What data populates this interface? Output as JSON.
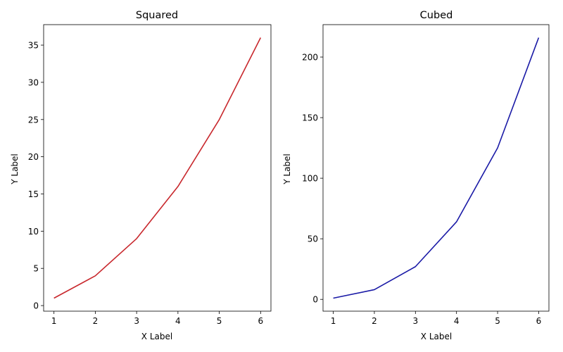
{
  "chart_data": [
    {
      "type": "line",
      "title": "Squared",
      "xlabel": "X Label",
      "ylabel": "Y Label",
      "x": [
        1,
        2,
        3,
        4,
        5,
        6
      ],
      "series": [
        {
          "values": [
            1,
            4,
            9,
            16,
            25,
            36
          ],
          "color": "#c8282d"
        }
      ],
      "xlim": [
        0.75,
        6.25
      ],
      "ylim": [
        -0.75,
        37.75
      ],
      "xticks": [
        1,
        2,
        3,
        4,
        5,
        6
      ],
      "yticks": [
        0,
        5,
        10,
        15,
        20,
        25,
        30,
        35
      ],
      "grid": false
    },
    {
      "type": "line",
      "title": "Cubed",
      "xlabel": "X Label",
      "ylabel": "Y Label",
      "x": [
        1,
        2,
        3,
        4,
        5,
        6
      ],
      "series": [
        {
          "values": [
            1,
            8,
            27,
            64,
            125,
            216
          ],
          "color": "#1a1aa6"
        }
      ],
      "xlim": [
        0.75,
        6.25
      ],
      "ylim": [
        -9.75,
        226.75
      ],
      "xticks": [
        1,
        2,
        3,
        4,
        5,
        6
      ],
      "yticks": [
        0,
        50,
        100,
        150,
        200
      ],
      "grid": false
    }
  ]
}
